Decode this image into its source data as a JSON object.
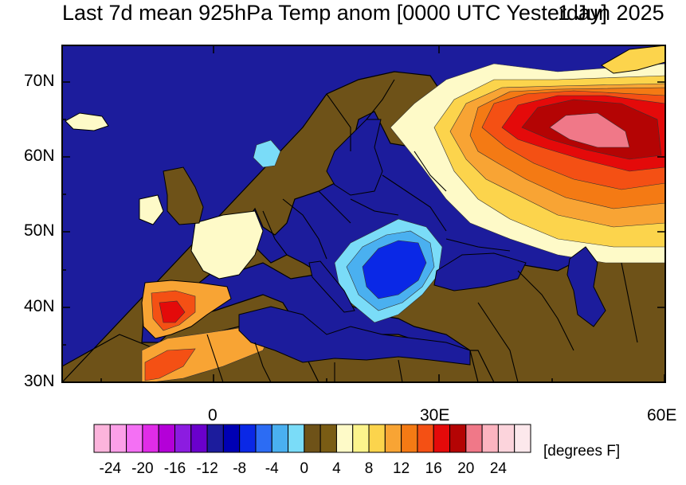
{
  "title": "Last 7d mean 925hPa Temp anom [0000 UTC Yesterday]",
  "date_label": "1 Jun 2025",
  "lat_labels": [
    "70N",
    "60N",
    "50N",
    "40N",
    "30N"
  ],
  "lon_labels": [
    "0",
    "30E",
    "60E"
  ],
  "units": "[degrees F]",
  "colorbar": {
    "tick_labels": [
      "-24",
      "-20",
      "-16",
      "-12",
      "-8",
      "-4",
      "0",
      "4",
      "8",
      "12",
      "16",
      "20",
      "24"
    ],
    "colors": [
      "#fcb4dc",
      "#fca0e8",
      "#f470f4",
      "#e02ce8",
      "#b400d8",
      "#8c1ce0",
      "#6a00cc",
      "#1c1c9c",
      "#0000b4",
      "#0a28e6",
      "#2c6cf4",
      "#4ab0f0",
      "#7adcf8",
      "#6e5218",
      "#7a5c14",
      "#fefac8",
      "#fcf48c",
      "#fcd44c",
      "#f8a434",
      "#f47a14",
      "#f45014",
      "#e40a0a",
      "#b40404",
      "#f07888",
      "#fcb4c0",
      "#fcd4dc",
      "#fce8ec"
    ]
  },
  "map": {
    "region": "Europe",
    "lon_range": [
      -17,
      60
    ],
    "lat_range": [
      30,
      75
    ],
    "features": [
      "coastlines",
      "country borders",
      "shaded anomaly contours"
    ]
  }
}
